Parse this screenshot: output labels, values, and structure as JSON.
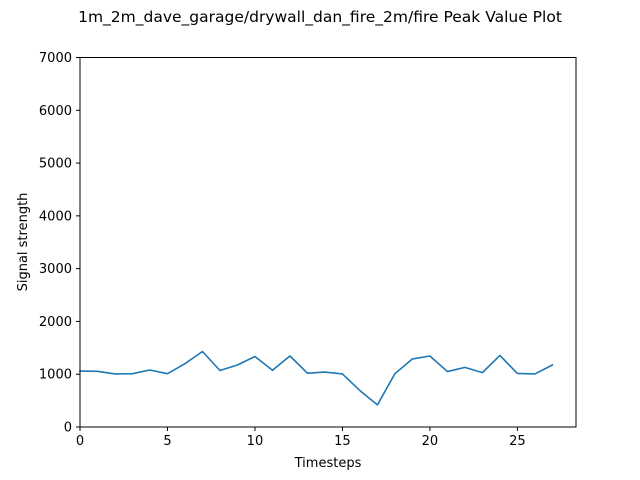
{
  "chart_data": {
    "type": "line",
    "title": "1m_2m_dave_garage/drywall_dan_fire_2m/fire Peak Value Plot",
    "xlabel": "Timesteps",
    "ylabel": "Signal strength",
    "xlim": [
      0,
      28.35
    ],
    "ylim": [
      0,
      7000
    ],
    "xticks": [
      0,
      5,
      10,
      15,
      20,
      25
    ],
    "yticks": [
      0,
      1000,
      2000,
      3000,
      4000,
      5000,
      6000,
      7000
    ],
    "grid": false,
    "series": [
      {
        "color": "#1f77b4",
        "x": [
          0,
          1,
          2,
          3,
          4,
          5,
          6,
          7,
          8,
          9,
          10,
          11,
          12,
          13,
          14,
          15,
          16,
          17,
          18,
          19,
          20,
          21,
          22,
          23,
          24,
          25,
          26,
          27
        ],
        "y": [
          1060,
          1055,
          1005,
          1010,
          1080,
          1010,
          1200,
          1430,
          1070,
          1175,
          1335,
          1075,
          1345,
          1020,
          1040,
          1005,
          690,
          420,
          1010,
          1290,
          1345,
          1050,
          1130,
          1030,
          1355,
          1015,
          1005,
          1175
        ]
      }
    ]
  }
}
